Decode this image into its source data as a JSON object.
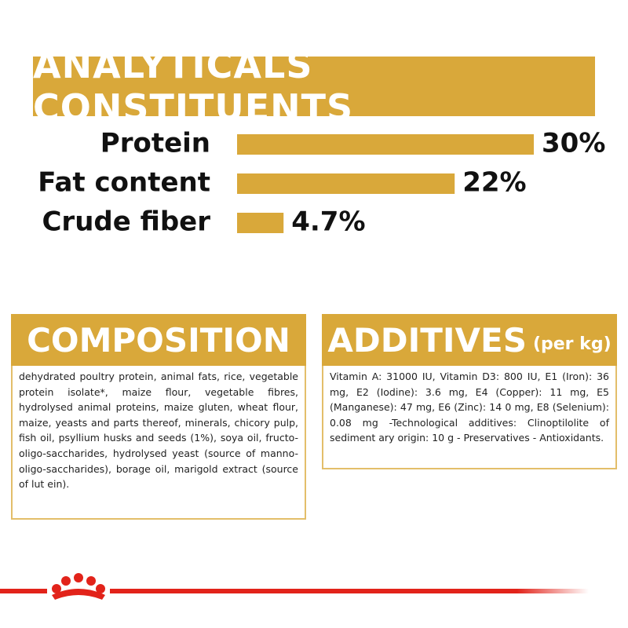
{
  "chart_data": {
    "type": "bar",
    "orientation": "horizontal",
    "title": "ANALYTICALS CONSTITUENTS",
    "categories": [
      "Protein",
      "Fat content",
      "Crude fiber"
    ],
    "values": [
      30,
      22,
      4.7
    ],
    "value_labels": [
      "30%",
      "22%",
      "4.7%"
    ],
    "color": "#d9a83a"
  },
  "composition": {
    "title": "COMPOSITION",
    "text": "dehydrated poultry protein, animal fats, rice, vegetable protein isolate*, maize flour, vegetable fibres, hydrolysed animal proteins, maize gluten, wheat flour, maize, yeasts and parts thereof, minerals, chicory pulp, fish oil, psyllium husks and seeds (1%), soya oil, fructo-oligo-saccharides, hydrolysed yeast (source of manno-oligo-saccharides), borage oil, marigold extract (source of lut ein)."
  },
  "additives": {
    "title": "ADDITIVES",
    "subtitle": "(per kg)",
    "text": "Vitamin A: 31000 IU, Vitamin D3: 800 IU, E1 (Iron): 36 mg, E2 (Iodine): 3.6 mg, E4 (Copper): 11 mg, E5 (Manganese): 47 mg, E6 (Zinc): 14 0 mg, E8 (Selenium): 0.08 mg -Technological additives: Clinoptilolite of sediment ary origin: 10 g - Preservatives - Antioxidants."
  }
}
